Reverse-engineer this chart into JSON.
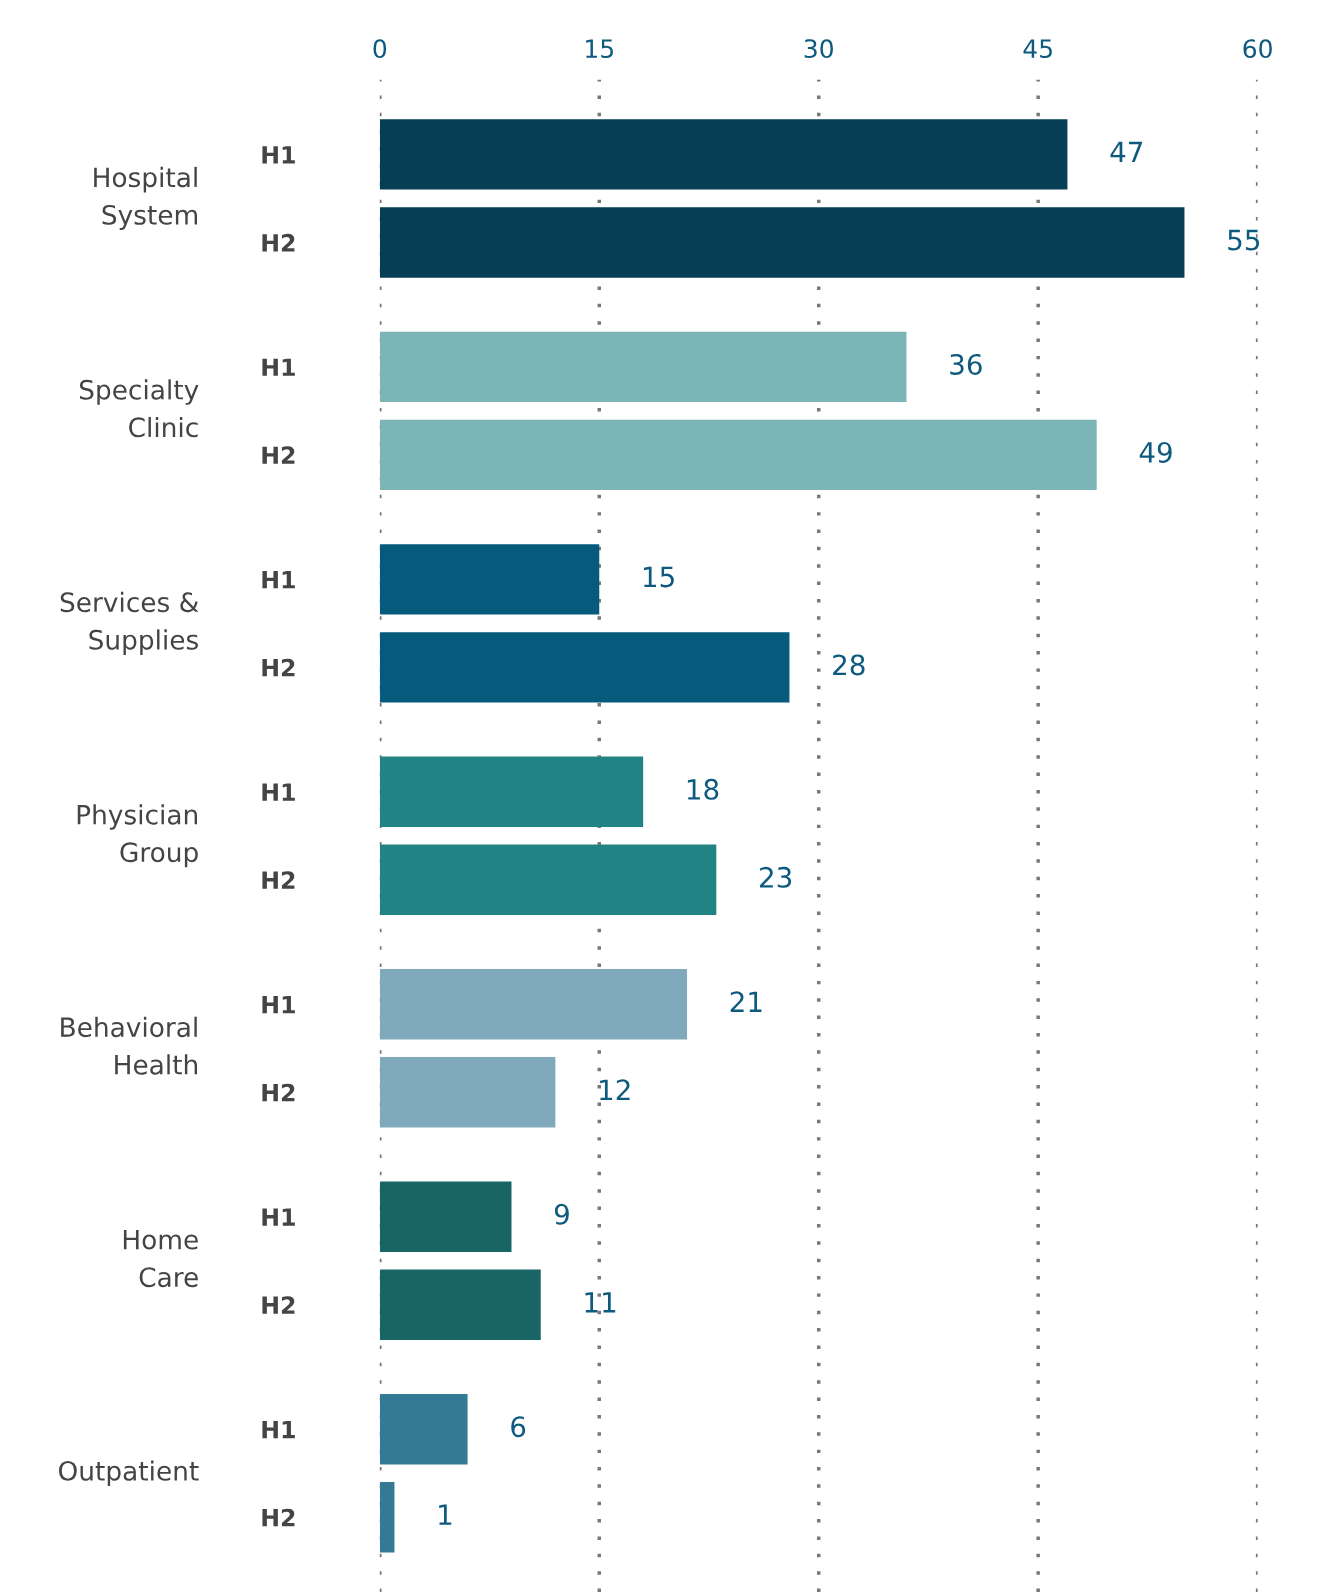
{
  "chart_data": {
    "type": "bar",
    "orientation": "horizontal",
    "categories": [
      "H1",
      "H2",
      "H1",
      "H2",
      "H1",
      "H2",
      "H1",
      "H2",
      "H1",
      "H2",
      "H1",
      "H2",
      "H1",
      "H2"
    ],
    "values": [
      47,
      55,
      36,
      49,
      15,
      28,
      18,
      23,
      21,
      12,
      9,
      11,
      6,
      1
    ],
    "colors": [
      "#053e55",
      "#053e55",
      "#7bb5b5",
      "#7bb5b5",
      "#065a7c",
      "#065a7c",
      "#218383",
      "#218383",
      "#80a9bc",
      "#80a9bc",
      "#196566",
      "#196566",
      "#357a94",
      "#357a94"
    ],
    "annotations": [
      "Hospital\nSystem",
      "Specialty\nClinic",
      "Services &\nSupplies",
      "Physician\nGroup",
      "Behavioral\nHealth",
      "Home\nCare",
      "Outpatient"
    ],
    "xlim": [
      0,
      60
    ],
    "xticks": [
      0,
      15,
      30,
      45,
      60
    ],
    "grid": "x",
    "line_style": "dotted",
    "data_labels": true,
    "legend": false
  }
}
